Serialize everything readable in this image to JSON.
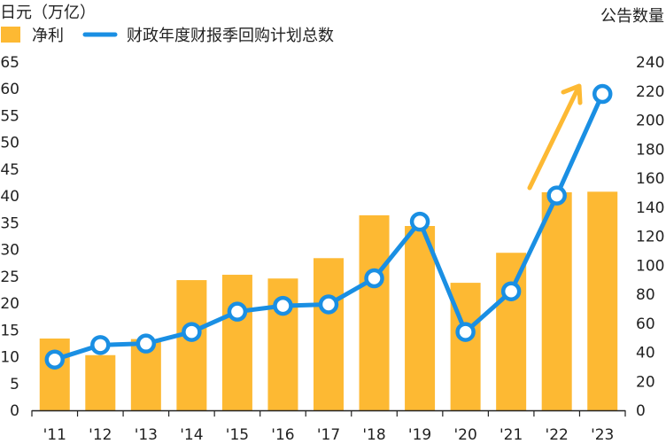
{
  "chart_data": {
    "type": "bar+line",
    "left_axis_title": "日元（万亿）",
    "right_axis_title": "公告数量",
    "categories": [
      "'11",
      "'12",
      "'13",
      "'14",
      "'15",
      "'16",
      "'17",
      "'18",
      "'19",
      "'20",
      "'21",
      "'22",
      "'23"
    ],
    "series": [
      {
        "name": "净利",
        "type": "bar",
        "axis": "left",
        "color": "#FDB933",
        "values": [
          13.4,
          10.3,
          13.3,
          24.3,
          25.3,
          24.6,
          28.4,
          36.4,
          34.4,
          23.8,
          29.4,
          40.7,
          40.8
        ]
      },
      {
        "name": "财政年度财报季回购计划总数",
        "type": "line",
        "axis": "right",
        "color": "#1A8FE3",
        "values": [
          35,
          45,
          46,
          54,
          68,
          72,
          73,
          91,
          130,
          54,
          82,
          148,
          218
        ]
      }
    ],
    "left_ylim": [
      0,
      65
    ],
    "left_ticks": [
      "0",
      "5",
      "10",
      "15",
      "20",
      "25",
      "30",
      "35",
      "40",
      "45",
      "50",
      "55",
      "60",
      "65"
    ],
    "right_ylim": [
      0,
      240
    ],
    "right_ticks": [
      "0",
      "20",
      "40",
      "60",
      "80",
      "100",
      "120",
      "140",
      "160",
      "180",
      "200",
      "220",
      "240"
    ],
    "grid": false,
    "legend": "top-left",
    "annotation": {
      "type": "arrow",
      "color": "#FDB933",
      "meaning": "upward trend"
    }
  }
}
